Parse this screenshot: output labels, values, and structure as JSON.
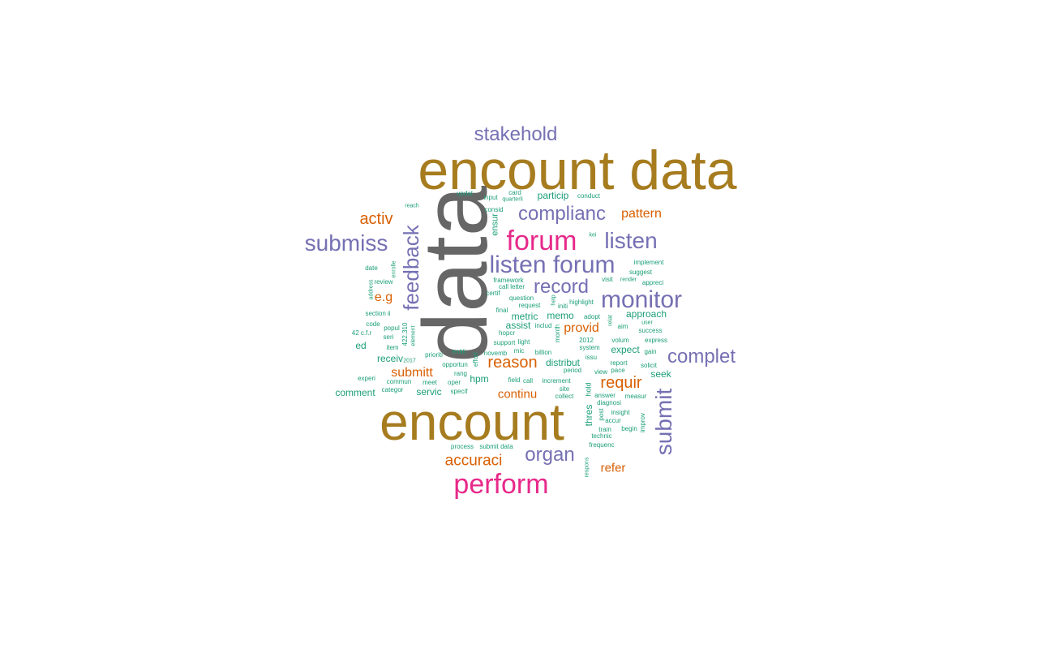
{
  "colors": {
    "gray": "#666666",
    "gold": "#a67c1f",
    "pink": "#e7298a",
    "purple": "#7570b3",
    "orange": "#d95f02",
    "teal": "#1b9e77"
  },
  "words": [
    {
      "text": "data",
      "color": "gray",
      "vertical": true
    },
    {
      "text": "encount data",
      "color": "gold"
    },
    {
      "text": "encount",
      "color": "gold"
    },
    {
      "text": "stakehold",
      "color": "purple"
    },
    {
      "text": "forum",
      "color": "pink"
    },
    {
      "text": "perform",
      "color": "pink"
    },
    {
      "text": "complianc",
      "color": "purple"
    },
    {
      "text": "listen",
      "color": "purple"
    },
    {
      "text": "submiss",
      "color": "purple"
    },
    {
      "text": "listen forum",
      "color": "purple"
    },
    {
      "text": "monitor",
      "color": "purple"
    },
    {
      "text": "record",
      "color": "purple"
    },
    {
      "text": "complet",
      "color": "purple"
    },
    {
      "text": "organ",
      "color": "purple"
    },
    {
      "text": "submit",
      "color": "purple",
      "vertical": true
    },
    {
      "text": "feedback",
      "color": "purple",
      "vertical": true
    },
    {
      "text": "activ",
      "color": "orange"
    },
    {
      "text": "pattern",
      "color": "orange"
    },
    {
      "text": "e.g",
      "color": "orange"
    },
    {
      "text": "reason",
      "color": "orange"
    },
    {
      "text": "requir",
      "color": "orange"
    },
    {
      "text": "provid",
      "color": "orange"
    },
    {
      "text": "submitt",
      "color": "orange"
    },
    {
      "text": "continu",
      "color": "orange"
    },
    {
      "text": "accuraci",
      "color": "orange"
    },
    {
      "text": "refer",
      "color": "orange"
    },
    {
      "text": "particip",
      "color": "teal"
    },
    {
      "text": "approach",
      "color": "teal"
    },
    {
      "text": "metric",
      "color": "teal"
    },
    {
      "text": "memo",
      "color": "teal"
    },
    {
      "text": "assist",
      "color": "teal"
    },
    {
      "text": "expect",
      "color": "teal"
    },
    {
      "text": "distribut",
      "color": "teal"
    },
    {
      "text": "hpm",
      "color": "teal"
    },
    {
      "text": "seek",
      "color": "teal"
    },
    {
      "text": "servic",
      "color": "teal"
    },
    {
      "text": "comment",
      "color": "teal"
    },
    {
      "text": "receiv",
      "color": "teal"
    },
    {
      "text": "ed",
      "color": "teal"
    },
    {
      "text": "thres",
      "color": "teal",
      "vertical": true
    },
    {
      "text": "hold",
      "color": "teal",
      "vertical": true
    },
    {
      "text": "ensur",
      "color": "teal",
      "vertical": true
    },
    {
      "text": "updat",
      "color": "teal"
    },
    {
      "text": "input",
      "color": "teal"
    },
    {
      "text": "card",
      "color": "teal"
    },
    {
      "text": "quarterli",
      "color": "teal"
    },
    {
      "text": "conduct",
      "color": "teal"
    },
    {
      "text": "reach",
      "color": "teal"
    },
    {
      "text": "consid",
      "color": "teal"
    },
    {
      "text": "kei",
      "color": "teal"
    },
    {
      "text": "implement",
      "color": "teal"
    },
    {
      "text": "suggest",
      "color": "teal"
    },
    {
      "text": "appreci",
      "color": "teal"
    },
    {
      "text": "render",
      "color": "teal"
    },
    {
      "text": "visit",
      "color": "teal"
    },
    {
      "text": "framework",
      "color": "teal"
    },
    {
      "text": "call letter",
      "color": "teal"
    },
    {
      "text": "certif",
      "color": "teal"
    },
    {
      "text": "question",
      "color": "teal"
    },
    {
      "text": "request",
      "color": "teal"
    },
    {
      "text": "initi",
      "color": "teal"
    },
    {
      "text": "highlight",
      "color": "teal"
    },
    {
      "text": "final",
      "color": "teal"
    },
    {
      "text": "adopt",
      "color": "teal"
    },
    {
      "text": "includ",
      "color": "teal"
    },
    {
      "text": "hopcr",
      "color": "teal"
    },
    {
      "text": "support",
      "color": "teal"
    },
    {
      "text": "light",
      "color": "teal"
    },
    {
      "text": "2012",
      "color": "teal"
    },
    {
      "text": "system",
      "color": "teal"
    },
    {
      "text": "aim",
      "color": "teal"
    },
    {
      "text": "success",
      "color": "teal"
    },
    {
      "text": "user",
      "color": "teal"
    },
    {
      "text": "volum",
      "color": "teal"
    },
    {
      "text": "express",
      "color": "teal"
    },
    {
      "text": "gain",
      "color": "teal"
    },
    {
      "text": "report",
      "color": "teal"
    },
    {
      "text": "solicit",
      "color": "teal"
    },
    {
      "text": "novemb",
      "color": "teal"
    },
    {
      "text": "billion",
      "color": "teal"
    },
    {
      "text": "mic",
      "color": "teal"
    },
    {
      "text": "issu",
      "color": "teal"
    },
    {
      "text": "period",
      "color": "teal"
    },
    {
      "text": "view",
      "color": "teal"
    },
    {
      "text": "entiti",
      "color": "teal"
    },
    {
      "text": "prioriti",
      "color": "teal"
    },
    {
      "text": "opportun",
      "color": "teal"
    },
    {
      "text": "rang",
      "color": "teal"
    },
    {
      "text": "field",
      "color": "teal"
    },
    {
      "text": "call",
      "color": "teal"
    },
    {
      "text": "increment",
      "color": "teal"
    },
    {
      "text": "site",
      "color": "teal"
    },
    {
      "text": "collect",
      "color": "teal"
    },
    {
      "text": "answer",
      "color": "teal"
    },
    {
      "text": "measur",
      "color": "teal"
    },
    {
      "text": "diagnosi",
      "color": "teal"
    },
    {
      "text": "insight",
      "color": "teal"
    },
    {
      "text": "accur",
      "color": "teal"
    },
    {
      "text": "train",
      "color": "teal"
    },
    {
      "text": "begin",
      "color": "teal"
    },
    {
      "text": "technic",
      "color": "teal"
    },
    {
      "text": "frequenc",
      "color": "teal"
    },
    {
      "text": "improv",
      "color": "teal",
      "vertical": true
    },
    {
      "text": "post",
      "color": "teal",
      "vertical": true
    },
    {
      "text": "pace",
      "color": "teal"
    },
    {
      "text": "respons",
      "color": "teal",
      "vertical": true
    },
    {
      "text": "process",
      "color": "teal"
    },
    {
      "text": "submit data",
      "color": "teal"
    },
    {
      "text": "specif",
      "color": "teal"
    },
    {
      "text": "categor",
      "color": "teal"
    },
    {
      "text": "commun",
      "color": "teal"
    },
    {
      "text": "experi",
      "color": "teal"
    },
    {
      "text": "meet",
      "color": "teal"
    },
    {
      "text": "oper",
      "color": "teal"
    },
    {
      "text": "2017",
      "color": "teal"
    },
    {
      "text": "section ii",
      "color": "teal"
    },
    {
      "text": "code",
      "color": "teal"
    },
    {
      "text": "popul",
      "color": "teal"
    },
    {
      "text": "seri",
      "color": "teal"
    },
    {
      "text": "42 c.f.r",
      "color": "teal"
    },
    {
      "text": "item",
      "color": "teal"
    },
    {
      "text": "date",
      "color": "teal"
    },
    {
      "text": "review",
      "color": "teal"
    },
    {
      "text": "address",
      "color": "teal",
      "vertical": true
    },
    {
      "text": "enrolle",
      "color": "teal",
      "vertical": true
    },
    {
      "text": "422.310",
      "color": "teal",
      "vertical": true
    },
    {
      "text": "element",
      "color": "teal",
      "vertical": true
    },
    {
      "text": "effort",
      "color": "teal",
      "vertical": true
    },
    {
      "text": "month",
      "color": "teal",
      "vertical": true
    },
    {
      "text": "relat",
      "color": "teal",
      "vertical": true
    },
    {
      "text": "help",
      "color": "teal",
      "vertical": true
    }
  ]
}
